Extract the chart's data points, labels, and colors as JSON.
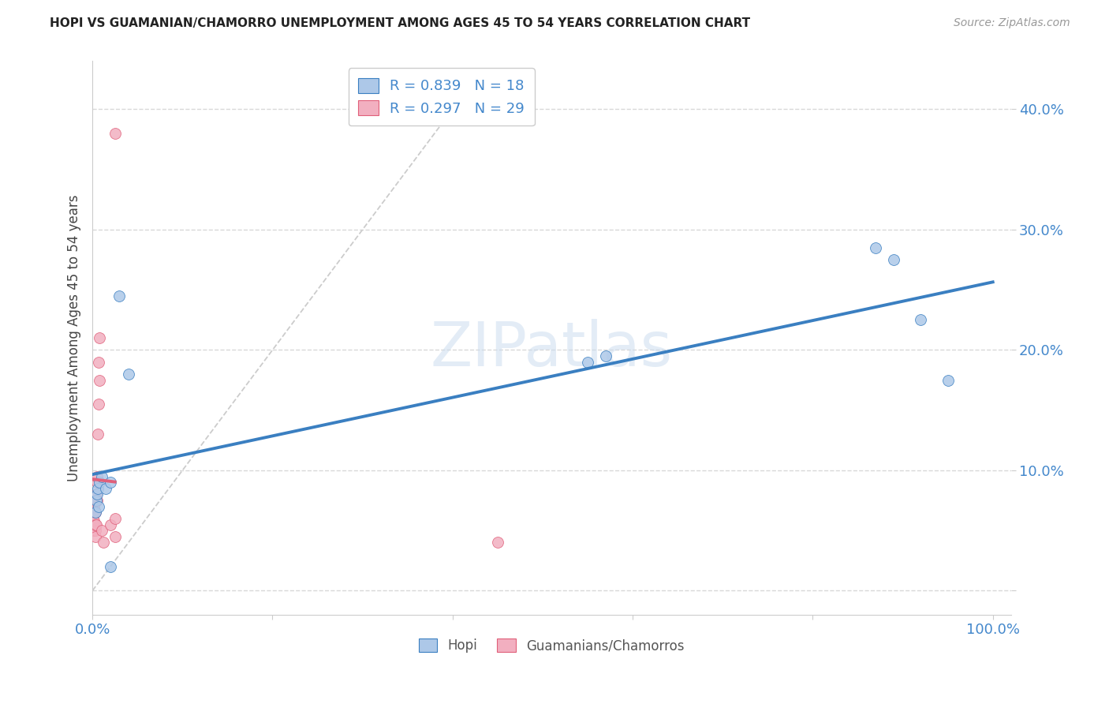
{
  "title": "HOPI VS GUAMANIAN/CHAMORRO UNEMPLOYMENT AMONG AGES 45 TO 54 YEARS CORRELATION CHART",
  "source": "Source: ZipAtlas.com",
  "ylabel": "Unemployment Among Ages 45 to 54 years",
  "hopi_R": 0.839,
  "hopi_N": 18,
  "guam_R": 0.297,
  "guam_N": 29,
  "hopi_color": "#adc8e8",
  "guam_color": "#f2afc0",
  "hopi_line_color": "#3a7fc1",
  "guam_line_color": "#e0607a",
  "hopi_scatter": [
    [
      0.003,
      0.065
    ],
    [
      0.004,
      0.075
    ],
    [
      0.005,
      0.08
    ],
    [
      0.006,
      0.085
    ],
    [
      0.007,
      0.07
    ],
    [
      0.008,
      0.09
    ],
    [
      0.01,
      0.095
    ],
    [
      0.015,
      0.085
    ],
    [
      0.02,
      0.09
    ],
    [
      0.03,
      0.245
    ],
    [
      0.04,
      0.18
    ],
    [
      0.55,
      0.19
    ],
    [
      0.57,
      0.195
    ],
    [
      0.87,
      0.285
    ],
    [
      0.89,
      0.275
    ],
    [
      0.92,
      0.225
    ],
    [
      0.95,
      0.175
    ],
    [
      0.02,
      0.02
    ]
  ],
  "guam_scatter": [
    [
      0.001,
      0.055
    ],
    [
      0.001,
      0.06
    ],
    [
      0.001,
      0.05
    ],
    [
      0.002,
      0.055
    ],
    [
      0.002,
      0.065
    ],
    [
      0.002,
      0.07
    ],
    [
      0.002,
      0.075
    ],
    [
      0.002,
      0.058
    ],
    [
      0.003,
      0.05
    ],
    [
      0.003,
      0.055
    ],
    [
      0.003,
      0.045
    ],
    [
      0.003,
      0.065
    ],
    [
      0.004,
      0.055
    ],
    [
      0.004,
      0.08
    ],
    [
      0.005,
      0.09
    ],
    [
      0.005,
      0.095
    ],
    [
      0.005,
      0.075
    ],
    [
      0.006,
      0.13
    ],
    [
      0.007,
      0.155
    ],
    [
      0.007,
      0.19
    ],
    [
      0.008,
      0.21
    ],
    [
      0.008,
      0.175
    ],
    [
      0.01,
      0.05
    ],
    [
      0.012,
      0.04
    ],
    [
      0.02,
      0.055
    ],
    [
      0.025,
      0.06
    ],
    [
      0.025,
      0.045
    ],
    [
      0.45,
      0.04
    ],
    [
      0.025,
      0.38
    ]
  ],
  "xlim": [
    0.0,
    1.02
  ],
  "ylim": [
    -0.02,
    0.44
  ],
  "xticks": [
    0.0,
    0.2,
    0.4,
    0.6,
    0.8,
    1.0
  ],
  "xtick_labels": [
    "0.0%",
    "",
    "",
    "",
    "",
    "100.0%"
  ],
  "yticks": [
    0.0,
    0.1,
    0.2,
    0.3,
    0.4
  ],
  "ytick_labels": [
    "",
    "10.0%",
    "20.0%",
    "30.0%",
    "40.0%"
  ],
  "watermark": "ZIPatlas",
  "background_color": "#ffffff",
  "grid_color": "#d8d8d8",
  "marker_size": 100,
  "tick_color": "#4488cc",
  "ref_line_color": "#cccccc",
  "hopi_trendline_x": [
    0.0,
    1.0
  ],
  "guam_trendline_x": [
    0.0,
    0.008
  ]
}
